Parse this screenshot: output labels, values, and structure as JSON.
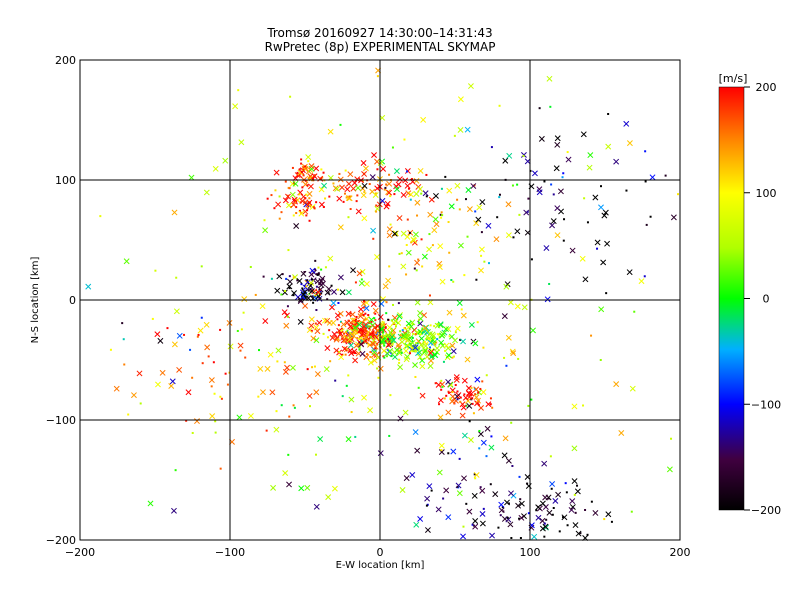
{
  "title_line1": "Tromsø 20160927 14:30:00–14:31:43",
  "title_line2": "RwPretec (8p) EXPERIMENTAL SKYMAP",
  "chart_data": {
    "type": "scatter",
    "xlabel": "E-W location [km]",
    "ylabel": "N-S location [km]",
    "xlim": [
      -200,
      200
    ],
    "ylim": [
      -200,
      200
    ],
    "xticks": [
      "−200",
      "−100",
      "0",
      "100",
      "200"
    ],
    "yticks": [
      "200",
      "100",
      "0",
      "−100",
      "−200"
    ],
    "grid": true,
    "colorbar": {
      "label": "[m/s]",
      "range": [
        -200,
        200
      ],
      "ticks": [
        "200",
        "100",
        "0",
        "−100",
        "−200"
      ]
    },
    "marker_types": [
      "cross",
      "dot"
    ],
    "clusters": [
      {
        "x": -8,
        "y": -28,
        "spread_x": 14,
        "spread_y": 9,
        "count": 260,
        "velocity_mean": 170
      },
      {
        "x": 25,
        "y": -35,
        "spread_x": 18,
        "spread_y": 10,
        "count": 200,
        "velocity_mean": 40
      },
      {
        "x": -45,
        "y": 12,
        "spread_x": 10,
        "spread_y": 8,
        "count": 90,
        "velocity_mean": -170
      },
      {
        "x": -50,
        "y": 105,
        "spread_x": 8,
        "spread_y": 6,
        "count": 50,
        "velocity_mean": 190
      },
      {
        "x": -55,
        "y": 80,
        "spread_x": 8,
        "spread_y": 6,
        "count": 45,
        "velocity_mean": 190
      },
      {
        "x": 0,
        "y": 95,
        "spread_x": 18,
        "spread_y": 10,
        "count": 80,
        "velocity_mean": 185
      },
      {
        "x": 55,
        "y": -80,
        "spread_x": 10,
        "spread_y": 8,
        "count": 70,
        "velocity_mean": 190
      },
      {
        "x": 110,
        "y": -180,
        "spread_x": 20,
        "spread_y": 14,
        "count": 80,
        "velocity_mean": -195
      },
      {
        "x": 20,
        "y": 50,
        "spread_x": 25,
        "spread_y": 20,
        "count": 60,
        "velocity_mean": 110
      },
      {
        "x": 110,
        "y": 80,
        "spread_x": 40,
        "spread_y": 35,
        "count": 90,
        "velocity_mean": -185
      },
      {
        "x": -90,
        "y": -50,
        "spread_x": 40,
        "spread_y": 30,
        "count": 80,
        "velocity_mean": 150
      },
      {
        "x": 60,
        "y": -150,
        "spread_x": 30,
        "spread_y": 30,
        "count": 60,
        "velocity_mean": -150
      },
      {
        "x": 0,
        "y": 0,
        "spread_x": 110,
        "spread_y": 110,
        "count": 300,
        "velocity_mean": 60
      }
    ]
  }
}
